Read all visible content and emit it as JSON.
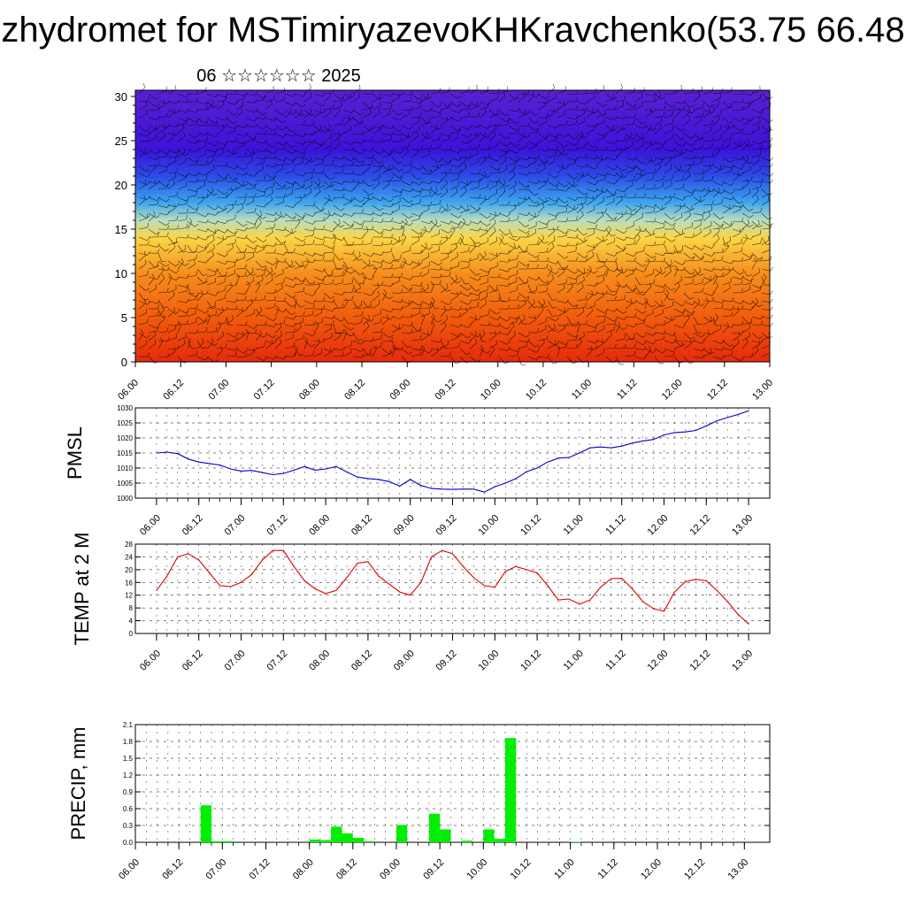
{
  "title": "zhydromet for MSTimiryazevoKHKravchenko(53.75 66.48",
  "subtitle": "06 ☆☆☆☆☆☆ 2025",
  "colors": {
    "pmsl_line": "#0000cc",
    "temp_line": "#dd0000",
    "precip_bar": "#00ee00",
    "axis": "#000000"
  },
  "chart_data": [
    {
      "type": "heatmap",
      "title": "",
      "xlabel": "",
      "ylabel": "",
      "x_ticks": [
        "06.00",
        "06.12",
        "07.00",
        "07.12",
        "08.00",
        "08.12",
        "09.00",
        "09.12",
        "10.00",
        "10.12",
        "11.00",
        "11.12",
        "12.00",
        "12.12",
        "13.00"
      ],
      "y_ticks": [
        0,
        5,
        10,
        15,
        20,
        25,
        30
      ],
      "ylim": [
        0,
        30.7
      ],
      "color_bands": [
        {
          "y": 0,
          "color": "#e52a0c"
        },
        {
          "y": 5,
          "color": "#f15c0c"
        },
        {
          "y": 10,
          "color": "#f68e1c"
        },
        {
          "y": 14,
          "color": "#fbd646"
        },
        {
          "y": 16,
          "color": "#b8ddc0"
        },
        {
          "y": 18,
          "color": "#3ea6ee"
        },
        {
          "y": 21,
          "color": "#2a4de6"
        },
        {
          "y": 24,
          "color": "#3b13d8"
        },
        {
          "y": 30.7,
          "color": "#5a20d2"
        }
      ],
      "overlay": "wind barbs"
    },
    {
      "type": "line",
      "ylabel": "PMSL",
      "ylim": [
        1000,
        1030
      ],
      "y_ticks": [
        1000,
        1005,
        1010,
        1015,
        1020,
        1025,
        1030
      ],
      "x_ticks": [
        "06.00",
        "06.12",
        "07.00",
        "07.12",
        "08.00",
        "08.12",
        "09.00",
        "09.12",
        "10.00",
        "10.12",
        "11.00",
        "11.12",
        "12.00",
        "12.12",
        "13.00"
      ],
      "x": [
        0,
        3,
        6,
        9,
        12,
        15,
        18,
        21,
        24,
        27,
        30,
        33,
        36,
        39,
        42,
        45,
        48,
        51,
        54,
        57,
        60,
        63,
        66,
        69,
        72,
        75,
        78,
        81,
        84,
        87,
        90,
        93,
        96,
        99,
        102,
        105,
        108,
        111,
        114,
        117,
        120,
        123,
        126,
        129,
        132,
        135,
        138,
        141,
        144,
        147,
        150,
        153,
        156,
        159,
        162,
        165,
        168
      ],
      "series": [
        {
          "values": [
            1015.0,
            1015.3,
            1014.8,
            1013.0,
            1012.0,
            1011.5,
            1011.0,
            1009.7,
            1009.0,
            1009.2,
            1008.5,
            1007.8,
            1008.2,
            1009.3,
            1010.5,
            1009.3,
            1009.7,
            1010.5,
            1008.7,
            1007.0,
            1006.5,
            1006.2,
            1005.5,
            1004.0,
            1006.2,
            1004.2,
            1003.2,
            1003.0,
            1002.9,
            1003.0,
            1003.0,
            1002.0,
            1003.8,
            1005.0,
            1006.5,
            1008.8,
            1010.0,
            1012.0,
            1013.3,
            1013.5,
            1015.0,
            1016.7,
            1017.0,
            1016.7,
            1017.3,
            1018.3,
            1019.0,
            1019.5,
            1021.0,
            1021.8,
            1022.0,
            1022.5,
            1024.0,
            1025.7,
            1026.8,
            1027.8,
            1029.0
          ]
        }
      ]
    },
    {
      "type": "line",
      "ylabel": "TEMP at 2 M",
      "ylim": [
        0,
        28
      ],
      "y_ticks": [
        0,
        4,
        8,
        12,
        16,
        20,
        24,
        28
      ],
      "x_ticks": [
        "06.00",
        "06.12",
        "07.00",
        "07.12",
        "08.00",
        "08.12",
        "09.00",
        "09.12",
        "10.00",
        "10.12",
        "11.00",
        "11.12",
        "12.00",
        "12.12",
        "13.00"
      ],
      "x": [
        0,
        3,
        6,
        9,
        12,
        15,
        18,
        21,
        24,
        27,
        30,
        33,
        36,
        39,
        42,
        45,
        48,
        51,
        54,
        57,
        60,
        63,
        66,
        69,
        72,
        75,
        78,
        81,
        84,
        87,
        90,
        93,
        96,
        99,
        102,
        105,
        108,
        111,
        114,
        117,
        120,
        123,
        126,
        129,
        132,
        135,
        138,
        141,
        144,
        147,
        150,
        153,
        156,
        159,
        162,
        165,
        168
      ],
      "series": [
        {
          "values": [
            13.5,
            18.0,
            24.0,
            25.0,
            23.0,
            19.0,
            15.0,
            14.7,
            16.0,
            18.5,
            23.0,
            26.0,
            26.0,
            21.0,
            16.5,
            14.0,
            12.5,
            13.5,
            17.5,
            22.0,
            22.5,
            18.0,
            15.5,
            13.0,
            12.0,
            16.0,
            24.0,
            26.0,
            25.0,
            21.0,
            17.5,
            15.0,
            14.5,
            19.5,
            21.0,
            20.0,
            19.0,
            15.0,
            10.5,
            10.8,
            9.2,
            10.5,
            14.5,
            17.2,
            17.3,
            14.0,
            10.0,
            7.8,
            7.0,
            13.0,
            16.2,
            17.0,
            16.5,
            13.5,
            10.0,
            6.0,
            3.0
          ]
        }
      ]
    },
    {
      "type": "bar",
      "ylabel": "PRECIP, mm",
      "ylim": [
        0,
        2.1
      ],
      "y_ticks": [
        "0.0",
        "0.3",
        "0.6",
        "0.9",
        "1.2",
        "1.5",
        "1.8",
        "2.1"
      ],
      "x_ticks": [
        "06.00",
        "06.12",
        "07.00",
        "07.12",
        "08.00",
        "08.12",
        "09.00",
        "09.12",
        "10.00",
        "10.12",
        "11.00",
        "11.12",
        "12.00",
        "12.12",
        "13.00"
      ],
      "bars": [
        {
          "x": 18,
          "value": 0.66
        },
        {
          "x": 21,
          "value": 0.02
        },
        {
          "x": 24,
          "value": 0.02
        },
        {
          "x": 48,
          "value": 0.05
        },
        {
          "x": 51,
          "value": 0.04
        },
        {
          "x": 54,
          "value": 0.28
        },
        {
          "x": 57,
          "value": 0.16
        },
        {
          "x": 60,
          "value": 0.08
        },
        {
          "x": 63,
          "value": 0.02
        },
        {
          "x": 72,
          "value": 0.31
        },
        {
          "x": 81,
          "value": 0.51
        },
        {
          "x": 84,
          "value": 0.23
        },
        {
          "x": 90,
          "value": 0.03
        },
        {
          "x": 96,
          "value": 0.23
        },
        {
          "x": 99,
          "value": 0.06
        },
        {
          "x": 102,
          "value": 1.86
        },
        {
          "x": 120,
          "value": 0.01
        }
      ]
    }
  ]
}
